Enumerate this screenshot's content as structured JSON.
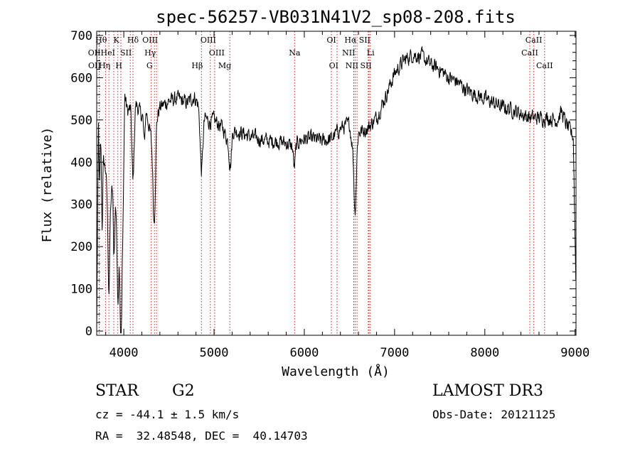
{
  "chart_data": {
    "type": "line",
    "title": "spec-56257-VB031N41V2_sp08-208.fits",
    "xlabel": "Wavelength (Å)",
    "ylabel": "Flux (relative)",
    "xlim": [
      3700,
      9010
    ],
    "ylim": [
      -10,
      710
    ],
    "xticks": [
      4000,
      5000,
      6000,
      7000,
      8000,
      9000
    ],
    "yticks": [
      0,
      100,
      200,
      300,
      400,
      500,
      600,
      700
    ],
    "line_color": "#000000",
    "marker_color": "#cc2222",
    "anchors": [
      [
        3700,
        0
      ],
      [
        3720,
        520
      ],
      [
        3750,
        440
      ],
      [
        3780,
        400
      ],
      [
        3800,
        380
      ],
      [
        3820,
        300
      ],
      [
        3850,
        290
      ],
      [
        3880,
        360
      ],
      [
        3900,
        280
      ],
      [
        3920,
        330
      ],
      [
        3950,
        260
      ],
      [
        3970,
        150
      ],
      [
        3990,
        240
      ],
      [
        4010,
        560
      ],
      [
        4040,
        520
      ],
      [
        4080,
        530
      ],
      [
        4100,
        470
      ],
      [
        4130,
        540
      ],
      [
        4200,
        510
      ],
      [
        4250,
        520
      ],
      [
        4300,
        460
      ],
      [
        4330,
        380
      ],
      [
        4360,
        500
      ],
      [
        4400,
        530
      ],
      [
        4500,
        545
      ],
      [
        4600,
        550
      ],
      [
        4700,
        540
      ],
      [
        4780,
        555
      ],
      [
        4820,
        540
      ],
      [
        4860,
        500
      ],
      [
        4900,
        505
      ],
      [
        4950,
        495
      ],
      [
        5000,
        500
      ],
      [
        5100,
        480
      ],
      [
        5170,
        440
      ],
      [
        5200,
        475
      ],
      [
        5300,
        470
      ],
      [
        5400,
        460
      ],
      [
        5500,
        455
      ],
      [
        5600,
        450
      ],
      [
        5700,
        450
      ],
      [
        5800,
        445
      ],
      [
        5880,
        435
      ],
      [
        5950,
        450
      ],
      [
        6000,
        455
      ],
      [
        6100,
        455
      ],
      [
        6200,
        450
      ],
      [
        6300,
        455
      ],
      [
        6400,
        480
      ],
      [
        6500,
        490
      ],
      [
        6560,
        400
      ],
      [
        6600,
        470
      ],
      [
        6700,
        480
      ],
      [
        6800,
        505
      ],
      [
        6900,
        555
      ],
      [
        7000,
        610
      ],
      [
        7100,
        640
      ],
      [
        7200,
        655
      ],
      [
        7300,
        650
      ],
      [
        7400,
        630
      ],
      [
        7500,
        620
      ],
      [
        7600,
        600
      ],
      [
        7700,
        590
      ],
      [
        7800,
        570
      ],
      [
        7900,
        560
      ],
      [
        8000,
        550
      ],
      [
        8100,
        540
      ],
      [
        8200,
        530
      ],
      [
        8300,
        525
      ],
      [
        8400,
        515
      ],
      [
        8500,
        505
      ],
      [
        8600,
        505
      ],
      [
        8700,
        505
      ],
      [
        8800,
        500
      ],
      [
        8850,
        520
      ],
      [
        8900,
        490
      ],
      [
        8980,
        460
      ],
      [
        9010,
        100
      ]
    ],
    "dips": [
      {
        "x": 3730,
        "depth": 150,
        "width": 6
      },
      {
        "x": 3760,
        "depth": 180,
        "width": 6
      },
      {
        "x": 3835,
        "depth": 200,
        "width": 8
      },
      {
        "x": 3889,
        "depth": 140,
        "width": 7
      },
      {
        "x": 3934,
        "depth": 220,
        "width": 10
      },
      {
        "x": 3968,
        "depth": 200,
        "width": 10
      },
      {
        "x": 4102,
        "depth": 120,
        "width": 12
      },
      {
        "x": 4227,
        "depth": 70,
        "width": 8
      },
      {
        "x": 4340,
        "depth": 150,
        "width": 12
      },
      {
        "x": 4861,
        "depth": 120,
        "width": 14
      },
      {
        "x": 5183,
        "depth": 60,
        "width": 12
      },
      {
        "x": 5890,
        "depth": 50,
        "width": 10
      },
      {
        "x": 6563,
        "depth": 120,
        "width": 12
      }
    ],
    "noise": 28,
    "line_markers": [
      {
        "label": "Hθ",
        "x": 3798,
        "row": 0,
        "align": "right"
      },
      {
        "label": "OII",
        "x": 3727,
        "row": 1,
        "align": "right"
      },
      {
        "label": "OII",
        "x": 3729,
        "row": 2,
        "align": "right"
      },
      {
        "label": "Hη",
        "x": 3835,
        "row": 2,
        "align": "right"
      },
      {
        "label": "HeI",
        "x": 3889,
        "row": 1,
        "align": "right"
      },
      {
        "label": "K",
        "x": 3934,
        "row": 0,
        "align": "right"
      },
      {
        "label": "SII",
        "x": 4072,
        "row": 1,
        "align": "right"
      },
      {
        "label": "H",
        "x": 3968,
        "row": 2,
        "align": "right"
      },
      {
        "label": "Hδ",
        "x": 4102,
        "row": 0,
        "align": "center"
      },
      {
        "label": "OIII",
        "x": 4363,
        "row": 0,
        "align": "right"
      },
      {
        "label": "Hγ",
        "x": 4340,
        "row": 1,
        "align": "right"
      },
      {
        "label": "G",
        "x": 4304,
        "row": 2,
        "align": "right"
      },
      {
        "label": "Hβ",
        "x": 4861,
        "row": 2,
        "align": "right"
      },
      {
        "label": "OIII",
        "x": 4959,
        "row": 1,
        "align": "left"
      },
      {
        "label": "OIII",
        "x": 5007,
        "row": 0,
        "align": "right"
      },
      {
        "label": "Mg",
        "x": 5175,
        "row": 2,
        "align": "right"
      },
      {
        "label": "Na",
        "x": 5893,
        "row": 1,
        "align": "center"
      },
      {
        "label": "OI",
        "x": 6300,
        "row": 0,
        "align": "center"
      },
      {
        "label": "OI",
        "x": 6363,
        "row": 2,
        "align": "right"
      },
      {
        "label": "Hα",
        "x": 6563,
        "row": 0,
        "align": "right"
      },
      {
        "label": "NII",
        "x": 6548,
        "row": 1,
        "align": "right"
      },
      {
        "label": "NII",
        "x": 6584,
        "row": 2,
        "align": "right"
      },
      {
        "label": "SII",
        "x": 6717,
        "row": 0,
        "align": "right"
      },
      {
        "label": "Li",
        "x": 6708,
        "row": 1,
        "align": "left"
      },
      {
        "label": "SII",
        "x": 6731,
        "row": 2,
        "align": "right"
      },
      {
        "label": "CaII",
        "x": 8542,
        "row": 0,
        "align": "center"
      },
      {
        "label": "CaII",
        "x": 8498,
        "row": 1,
        "align": "center"
      },
      {
        "label": "CaII",
        "x": 8662,
        "row": 2,
        "align": "center"
      }
    ]
  },
  "info": {
    "class": "STAR",
    "subclass": "G2",
    "survey": "LAMOST DR3",
    "cz": "cz = -44.1 ± 1.5 km/s",
    "obs_date": "Obs-Date: 20121125",
    "coords": "RA =  32.48548, DEC =  40.14703"
  }
}
